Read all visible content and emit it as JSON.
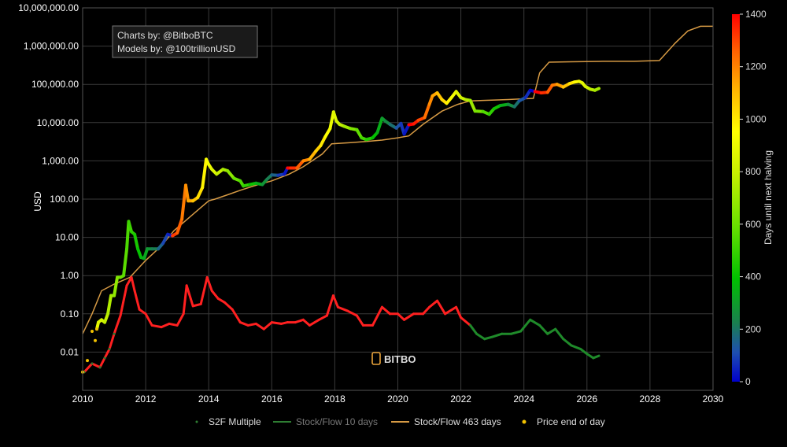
{
  "chart_data": {
    "type": "scatter",
    "title": "",
    "credits": [
      "Charts by: @BitboBTC",
      "Models by: @100trillionUSD"
    ],
    "brand": "BITBO",
    "ylabel": "USD",
    "y_scale": "log",
    "ylim": [
      0.001,
      10000000
    ],
    "y_ticks": [
      0.01,
      0.1,
      1,
      10,
      100,
      1000,
      10000,
      100000,
      1000000,
      10000000
    ],
    "y_tick_labels": [
      "0.01",
      "0.10",
      "1.00",
      "10.00",
      "100.00",
      "1,000.00",
      "10,000.00",
      "100,000.00",
      "1,000,000.00",
      "10,000,000.00"
    ],
    "xlim": [
      2010,
      2030
    ],
    "x_ticks": [
      "2010",
      "2012",
      "2014",
      "2016",
      "2018",
      "2020",
      "2022",
      "2024",
      "2026",
      "2028",
      "2030"
    ],
    "grid": true,
    "legend_position": "bottom",
    "colorbar": {
      "label": "Days until next halving",
      "min": 0,
      "max": 1400,
      "ticks": [
        "0",
        "200",
        "400",
        "600",
        "800",
        "1000",
        "1200",
        "1400"
      ]
    },
    "series": [
      {
        "name": "S2F Multiple",
        "color": "#2e7d32",
        "points": [
          [
            2010.05,
            0.003
          ],
          [
            2010.3,
            0.005
          ],
          [
            2010.55,
            0.004
          ],
          [
            2010.7,
            0.007
          ],
          [
            2010.85,
            0.012
          ],
          [
            2011.0,
            0.03
          ],
          [
            2011.2,
            0.09
          ],
          [
            2011.4,
            0.55
          ],
          [
            2011.55,
            0.9
          ],
          [
            2011.65,
            0.4
          ],
          [
            2011.8,
            0.13
          ],
          [
            2012.0,
            0.1
          ],
          [
            2012.2,
            0.05
          ],
          [
            2012.5,
            0.045
          ],
          [
            2012.75,
            0.055
          ],
          [
            2013.0,
            0.05
          ],
          [
            2013.2,
            0.1
          ],
          [
            2013.3,
            0.55
          ],
          [
            2013.5,
            0.16
          ],
          [
            2013.75,
            0.18
          ],
          [
            2013.95,
            0.9
          ],
          [
            2014.1,
            0.4
          ],
          [
            2014.3,
            0.25
          ],
          [
            2014.5,
            0.2
          ],
          [
            2014.75,
            0.13
          ],
          [
            2015.0,
            0.06
          ],
          [
            2015.25,
            0.05
          ],
          [
            2015.5,
            0.055
          ],
          [
            2015.75,
            0.04
          ],
          [
            2016.0,
            0.06
          ],
          [
            2016.3,
            0.055
          ],
          [
            2016.5,
            0.06
          ],
          [
            2016.75,
            0.06
          ],
          [
            2017.0,
            0.07
          ],
          [
            2017.2,
            0.05
          ],
          [
            2017.5,
            0.07
          ],
          [
            2017.75,
            0.09
          ],
          [
            2017.95,
            0.3
          ],
          [
            2018.1,
            0.15
          ],
          [
            2018.4,
            0.12
          ],
          [
            2018.7,
            0.09
          ],
          [
            2018.9,
            0.05
          ],
          [
            2019.2,
            0.05
          ],
          [
            2019.5,
            0.15
          ],
          [
            2019.75,
            0.1
          ],
          [
            2020.0,
            0.1
          ],
          [
            2020.2,
            0.07
          ],
          [
            2020.5,
            0.1
          ],
          [
            2020.8,
            0.1
          ],
          [
            2021.0,
            0.15
          ],
          [
            2021.25,
            0.22
          ],
          [
            2021.5,
            0.1
          ],
          [
            2021.85,
            0.15
          ],
          [
            2022.0,
            0.08
          ],
          [
            2022.3,
            0.05
          ],
          [
            2022.5,
            0.03
          ],
          [
            2022.75,
            0.022
          ],
          [
            2023.0,
            0.025
          ],
          [
            2023.3,
            0.03
          ],
          [
            2023.6,
            0.03
          ],
          [
            2023.9,
            0.035
          ],
          [
            2024.2,
            0.07
          ],
          [
            2024.5,
            0.05
          ],
          [
            2024.75,
            0.03
          ],
          [
            2025.0,
            0.04
          ],
          [
            2025.25,
            0.022
          ],
          [
            2025.5,
            0.015
          ],
          [
            2025.8,
            0.012
          ],
          [
            2026.0,
            0.009
          ],
          [
            2026.2,
            0.007
          ],
          [
            2026.38,
            0.008
          ]
        ]
      },
      {
        "name": "Stock/Flow 10 days",
        "color": "#2e7d32",
        "points": []
      },
      {
        "name": "Stock/Flow 463 days",
        "color": "#d69a44",
        "points": [
          [
            2010.0,
            0.03
          ],
          [
            2010.3,
            0.1
          ],
          [
            2010.6,
            0.4
          ],
          [
            2011.0,
            0.6
          ],
          [
            2011.5,
            0.9
          ],
          [
            2012.0,
            2.5
          ],
          [
            2012.5,
            6
          ],
          [
            2012.9,
            15
          ],
          [
            2013.5,
            40
          ],
          [
            2014.0,
            90
          ],
          [
            2014.2,
            100
          ],
          [
            2014.6,
            130
          ],
          [
            2015.0,
            170
          ],
          [
            2015.5,
            230
          ],
          [
            2016.0,
            300
          ],
          [
            2016.55,
            450
          ],
          [
            2017.0,
            700
          ],
          [
            2017.6,
            1500
          ],
          [
            2017.9,
            2800
          ],
          [
            2018.5,
            3000
          ],
          [
            2019.0,
            3200
          ],
          [
            2019.5,
            3500
          ],
          [
            2020.0,
            4000
          ],
          [
            2020.35,
            4500
          ],
          [
            2020.8,
            9000
          ],
          [
            2021.4,
            20000
          ],
          [
            2021.9,
            30000
          ],
          [
            2022.3,
            37000
          ],
          [
            2022.7,
            38000
          ],
          [
            2023.5,
            40000
          ],
          [
            2024.0,
            42000
          ],
          [
            2024.3,
            43000
          ],
          [
            2024.5,
            200000
          ],
          [
            2024.8,
            380000
          ],
          [
            2025.5,
            390000
          ],
          [
            2026.5,
            400000
          ],
          [
            2027.5,
            400000
          ],
          [
            2028.3,
            420000
          ],
          [
            2028.8,
            1200000
          ],
          [
            2029.2,
            2500000
          ],
          [
            2029.6,
            3300000
          ],
          [
            2030.0,
            3300000
          ]
        ]
      },
      {
        "name": "Price end of day",
        "color": "#f2c200",
        "points": [
          [
            2010.0,
            0.003
          ],
          [
            2010.15,
            0.006
          ],
          [
            2010.3,
            0.035
          ],
          [
            2010.4,
            0.02
          ],
          [
            2010.45,
            0.04
          ],
          [
            2010.5,
            0.06
          ],
          [
            2010.6,
            0.07
          ],
          [
            2010.7,
            0.06
          ],
          [
            2010.8,
            0.1
          ],
          [
            2010.9,
            0.3
          ],
          [
            2011.0,
            0.3
          ],
          [
            2011.1,
            0.9
          ],
          [
            2011.2,
            0.9
          ],
          [
            2011.3,
            1.0
          ],
          [
            2011.4,
            5
          ],
          [
            2011.46,
            26
          ],
          [
            2011.55,
            14
          ],
          [
            2011.65,
            12
          ],
          [
            2011.75,
            5
          ],
          [
            2011.85,
            3
          ],
          [
            2011.95,
            2.8
          ],
          [
            2012.05,
            5
          ],
          [
            2012.2,
            5
          ],
          [
            2012.4,
            5
          ],
          [
            2012.55,
            7
          ],
          [
            2012.7,
            12
          ],
          [
            2012.85,
            11
          ],
          [
            2013.0,
            13
          ],
          [
            2013.15,
            30
          ],
          [
            2013.27,
            230
          ],
          [
            2013.35,
            90
          ],
          [
            2013.5,
            90
          ],
          [
            2013.65,
            110
          ],
          [
            2013.8,
            200
          ],
          [
            2013.92,
            1100
          ],
          [
            2014.0,
            800
          ],
          [
            2014.1,
            600
          ],
          [
            2014.25,
            450
          ],
          [
            2014.45,
            600
          ],
          [
            2014.6,
            550
          ],
          [
            2014.8,
            350
          ],
          [
            2015.0,
            300
          ],
          [
            2015.1,
            220
          ],
          [
            2015.3,
            240
          ],
          [
            2015.5,
            260
          ],
          [
            2015.7,
            240
          ],
          [
            2015.85,
            330
          ],
          [
            2016.0,
            430
          ],
          [
            2016.2,
            420
          ],
          [
            2016.4,
            450
          ],
          [
            2016.5,
            650
          ],
          [
            2016.6,
            650
          ],
          [
            2016.8,
            650
          ],
          [
            2017.0,
            1000
          ],
          [
            2017.2,
            1100
          ],
          [
            2017.4,
            1800
          ],
          [
            2017.55,
            2500
          ],
          [
            2017.7,
            4300
          ],
          [
            2017.85,
            7000
          ],
          [
            2017.96,
            19000
          ],
          [
            2018.05,
            11000
          ],
          [
            2018.15,
            9000
          ],
          [
            2018.3,
            8000
          ],
          [
            2018.5,
            7000
          ],
          [
            2018.7,
            6500
          ],
          [
            2018.85,
            4000
          ],
          [
            2019.0,
            3600
          ],
          [
            2019.2,
            4000
          ],
          [
            2019.35,
            5500
          ],
          [
            2019.5,
            13000
          ],
          [
            2019.6,
            11000
          ],
          [
            2019.75,
            9000
          ],
          [
            2019.95,
            7200
          ],
          [
            2020.1,
            9500
          ],
          [
            2020.2,
            5000
          ],
          [
            2020.35,
            8800
          ],
          [
            2020.5,
            9200
          ],
          [
            2020.65,
            11500
          ],
          [
            2020.85,
            13500
          ],
          [
            2021.0,
            30000
          ],
          [
            2021.1,
            50000
          ],
          [
            2021.25,
            60000
          ],
          [
            2021.4,
            40000
          ],
          [
            2021.55,
            32000
          ],
          [
            2021.7,
            45000
          ],
          [
            2021.85,
            65000
          ],
          [
            2022.0,
            45000
          ],
          [
            2022.15,
            40000
          ],
          [
            2022.3,
            38000
          ],
          [
            2022.45,
            20000
          ],
          [
            2022.7,
            19500
          ],
          [
            2022.9,
            16500
          ],
          [
            2023.05,
            23000
          ],
          [
            2023.25,
            28000
          ],
          [
            2023.5,
            30000
          ],
          [
            2023.7,
            26000
          ],
          [
            2023.85,
            37000
          ],
          [
            2024.05,
            45000
          ],
          [
            2024.2,
            70000
          ],
          [
            2024.35,
            65000
          ],
          [
            2024.55,
            60000
          ],
          [
            2024.75,
            62000
          ],
          [
            2024.9,
            95000
          ],
          [
            2025.05,
            100000
          ],
          [
            2025.25,
            85000
          ],
          [
            2025.45,
            105000
          ],
          [
            2025.6,
            115000
          ],
          [
            2025.75,
            120000
          ],
          [
            2025.85,
            110000
          ],
          [
            2025.95,
            88000
          ],
          [
            2026.1,
            75000
          ],
          [
            2026.25,
            70000
          ],
          [
            2026.38,
            78000
          ]
        ]
      }
    ]
  }
}
